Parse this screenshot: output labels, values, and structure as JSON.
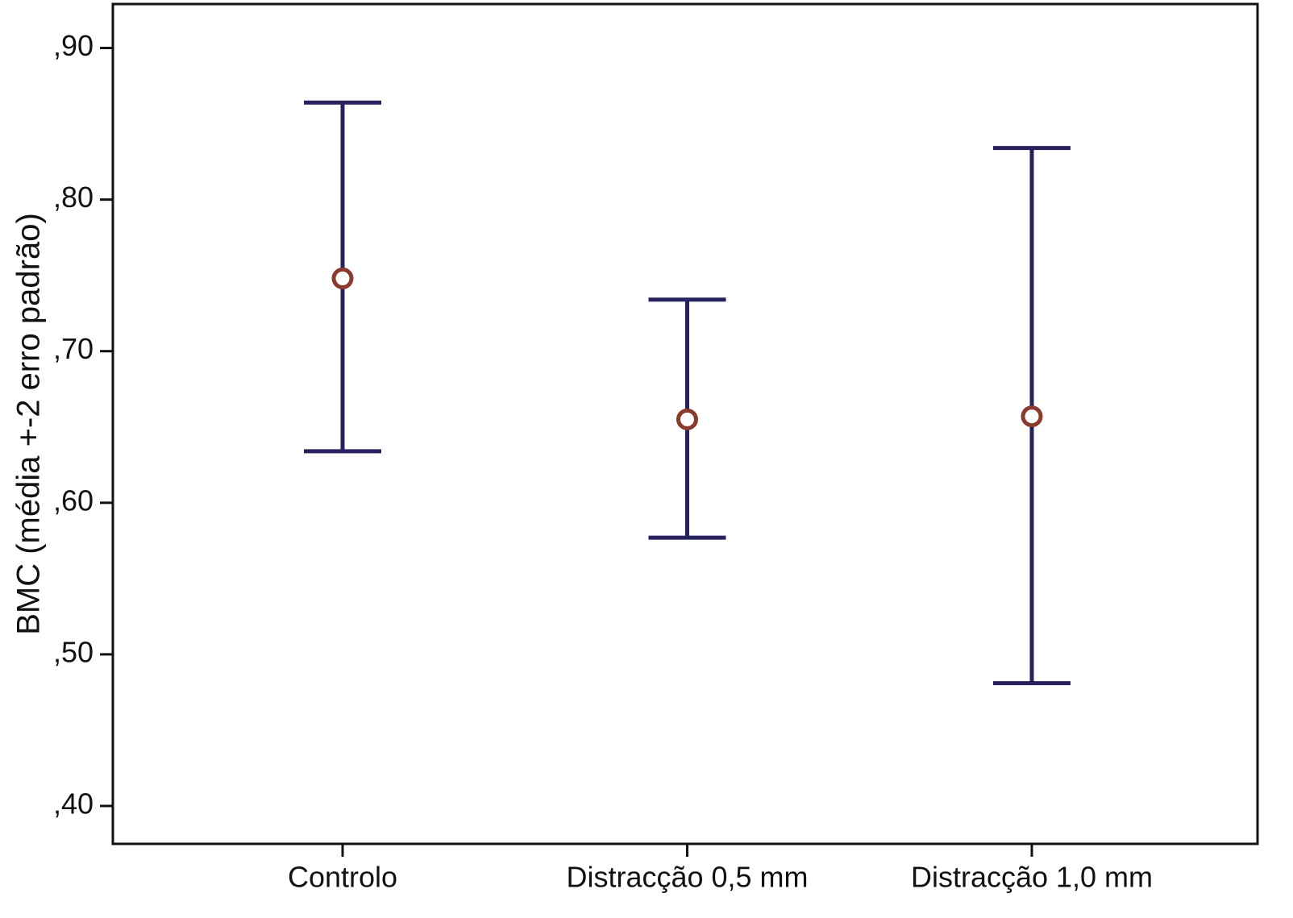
{
  "chart_data": {
    "type": "errorbar",
    "y_label": "BMC (média +-2 erro padrão)",
    "categories": [
      "Controlo",
      "Distracção 0,5 mm",
      "Distracção 1,0 mm"
    ],
    "values": [
      0.748,
      0.655,
      0.657
    ],
    "lower": [
      0.634,
      0.577,
      0.481
    ],
    "upper": [
      0.864,
      0.734,
      0.834
    ],
    "bar_color": "#27215e",
    "marker_color": "#8b3a2e",
    "ylim": [
      0.375,
      0.929
    ],
    "yticks": [
      {
        "value": 0.4,
        "label": ",40"
      },
      {
        "value": 0.5,
        "label": ",50"
      },
      {
        "value": 0.6,
        "label": ",60"
      },
      {
        "value": 0.7,
        "label": ",70"
      },
      {
        "value": 0.8,
        "label": ",80"
      },
      {
        "value": 0.9,
        "label": ",90"
      }
    ]
  }
}
